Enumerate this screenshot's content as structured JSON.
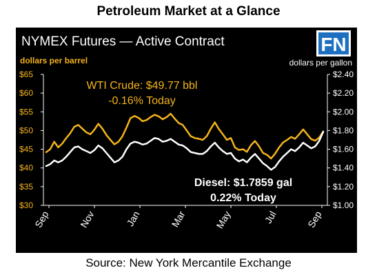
{
  "page_title": "Petroleum Market at a Glance",
  "source": "Source: New York Mercantile Exchange",
  "logo_text": "FN",
  "colors": {
    "panel_bg": "#000000",
    "crude": "#f5b41b",
    "diesel": "#ffffff",
    "left_axis_labels": "#f5b41b",
    "right_axis_labels": "#ffffff",
    "logo_bg": "#1d70c0"
  },
  "chart_data": {
    "type": "line",
    "title": "NYMEX Futures — Active Contract",
    "left_axis": {
      "unit_label": "dollars per barrel",
      "ylim": [
        30,
        65
      ],
      "ticks": [
        30,
        35,
        40,
        45,
        50,
        55,
        60,
        65
      ],
      "tick_labels": [
        "$30",
        "$35",
        "$40",
        "$45",
        "$50",
        "$55",
        "$60",
        "$65"
      ]
    },
    "right_axis": {
      "unit_label": "dollars per gallon",
      "ylim": [
        1.0,
        2.4
      ],
      "ticks": [
        1.0,
        1.2,
        1.4,
        1.6,
        1.8,
        2.0,
        2.2,
        2.4
      ],
      "tick_labels": [
        "$1.00",
        "$1.20",
        "$1.40",
        "$1.60",
        "$1.80",
        "$2.00",
        "$2.20",
        "$2.40"
      ]
    },
    "x_axis": {
      "tick_labels": [
        "Sep",
        "Nov",
        "Jan",
        "Mar",
        "May",
        "Jul",
        "Sep"
      ]
    },
    "grid": false,
    "series": [
      {
        "name": "WTI Crude",
        "axis": "left",
        "values": [
          44.2,
          45.0,
          47.0,
          45.5,
          46.5,
          48.0,
          49.3,
          51.0,
          51.5,
          50.5,
          49.5,
          49.0,
          50.2,
          51.8,
          50.5,
          48.8,
          47.5,
          46.3,
          47.0,
          48.5,
          50.8,
          53.3,
          53.9,
          53.4,
          52.5,
          52.8,
          53.6,
          54.2,
          53.8,
          53.0,
          53.6,
          54.5,
          53.2,
          52.0,
          51.5,
          50.0,
          48.5,
          48.0,
          47.8,
          47.5,
          48.5,
          50.5,
          52.2,
          50.4,
          49.0,
          47.5,
          48.0,
          45.5,
          44.8,
          45.0,
          44.3,
          46.1,
          47.2,
          45.8,
          44.0,
          43.5,
          42.5,
          43.8,
          45.5,
          46.8,
          47.5,
          48.3,
          47.8,
          49.0,
          50.3,
          49.0,
          47.7,
          47.3,
          48.1,
          49.77
        ]
      },
      {
        "name": "Diesel",
        "axis": "right",
        "values": [
          1.42,
          1.44,
          1.48,
          1.46,
          1.48,
          1.52,
          1.57,
          1.62,
          1.63,
          1.6,
          1.58,
          1.56,
          1.59,
          1.64,
          1.61,
          1.56,
          1.51,
          1.46,
          1.48,
          1.52,
          1.6,
          1.66,
          1.68,
          1.67,
          1.65,
          1.66,
          1.69,
          1.72,
          1.71,
          1.68,
          1.69,
          1.71,
          1.68,
          1.65,
          1.64,
          1.61,
          1.57,
          1.56,
          1.55,
          1.55,
          1.58,
          1.63,
          1.67,
          1.62,
          1.58,
          1.55,
          1.56,
          1.5,
          1.47,
          1.49,
          1.46,
          1.51,
          1.55,
          1.5,
          1.45,
          1.42,
          1.38,
          1.41,
          1.47,
          1.52,
          1.56,
          1.6,
          1.58,
          1.62,
          1.67,
          1.64,
          1.61,
          1.63,
          1.69,
          1.7859
        ]
      }
    ],
    "annotations": [
      {
        "series": "WTI Crude",
        "line1": "WTI Crude: $49.77 bbl",
        "line2": "-0.16% Today"
      },
      {
        "series": "Diesel",
        "line1": "Diesel: $1.7859 gal",
        "line2": "0.22% Today"
      }
    ]
  }
}
